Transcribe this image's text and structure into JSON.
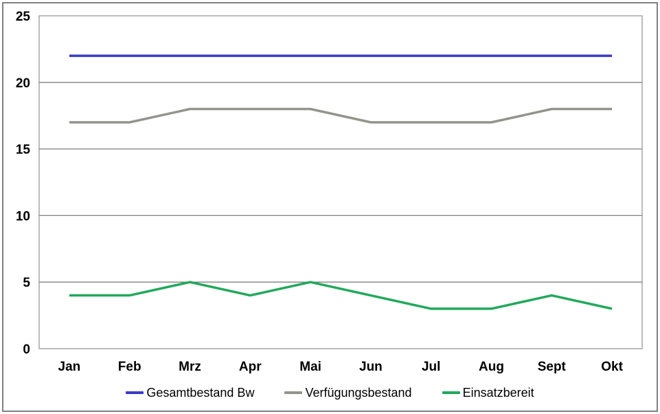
{
  "chart_data": {
    "type": "line",
    "title": "",
    "xlabel": "",
    "ylabel": "",
    "categories": [
      "Jan",
      "Feb",
      "Mrz",
      "Apr",
      "Mai",
      "Jun",
      "Jul",
      "Aug",
      "Sept",
      "Okt"
    ],
    "series": [
      {
        "name": "Gesamtbestand Bw",
        "color": "#3B3BC8",
        "values": [
          22,
          22,
          22,
          22,
          22,
          22,
          22,
          22,
          22,
          22
        ]
      },
      {
        "name": "Verfügungsbestand",
        "color": "#94948C",
        "values": [
          17,
          17,
          18,
          18,
          18,
          17,
          17,
          17,
          18,
          18
        ]
      },
      {
        "name": "Einsatzbereit",
        "color": "#21A95B",
        "values": [
          4,
          4,
          5,
          4,
          5,
          4,
          3,
          3,
          4,
          3
        ]
      }
    ],
    "ylim": [
      0,
      25
    ],
    "y_ticks": [
      0,
      5,
      10,
      15,
      20,
      25
    ],
    "grid": "horizontal",
    "legend_position": "bottom",
    "colors": {
      "grid": "#808080",
      "plot_border": "#A6A6A6",
      "frame_border": "#808080",
      "background": "#FFFFFF",
      "text": "#000000"
    }
  }
}
